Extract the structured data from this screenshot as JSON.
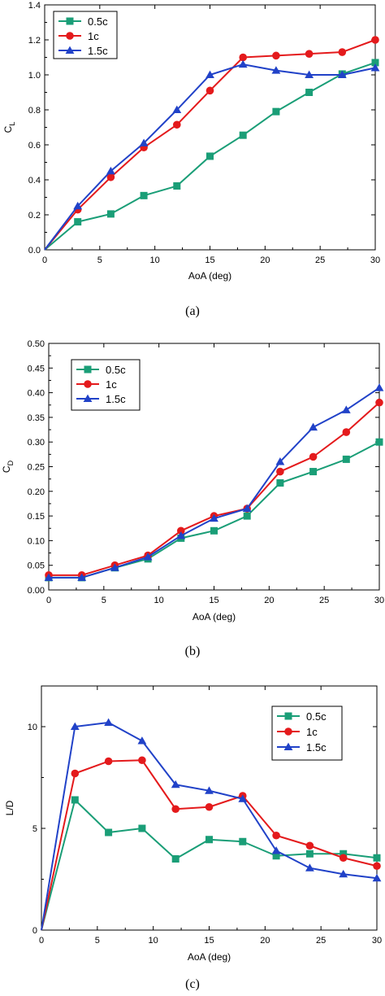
{
  "colors": {
    "s05": "#1a9e77",
    "s1": "#e41a1c",
    "s15": "#2142c8"
  },
  "chart_data": [
    {
      "id": "a",
      "type": "line",
      "caption": "(a)",
      "xlabel": "AoA (deg)",
      "ylabel": "C",
      "ylabel_sub": "L",
      "xlim": [
        0,
        30
      ],
      "ylim": [
        0,
        1.4
      ],
      "xticks": [
        0,
        5,
        10,
        15,
        20,
        25,
        30
      ],
      "xtick_labels": [
        "0",
        "5",
        "10",
        "15",
        "20",
        "25",
        "30"
      ],
      "yticks": [
        0,
        0.2,
        0.4,
        0.6,
        0.8,
        1.0,
        1.2,
        1.4
      ],
      "ytick_labels": [
        "0.0",
        "0.2",
        "0.4",
        "0.6",
        "0.8",
        "1.0",
        "1.2",
        "1.4"
      ],
      "legend_position": "top-left",
      "x": [
        0,
        3,
        6,
        9,
        12,
        15,
        18,
        21,
        24,
        27,
        30
      ],
      "series": [
        {
          "name": "0.5c",
          "color_key": "s05",
          "marker": "square",
          "values": [
            0.0,
            0.16,
            0.205,
            0.31,
            0.365,
            0.535,
            0.655,
            0.79,
            0.9,
            1.005,
            1.07
          ]
        },
        {
          "name": "1c",
          "color_key": "s1",
          "marker": "circle",
          "values": [
            0.0,
            0.23,
            0.415,
            0.585,
            0.715,
            0.91,
            1.1,
            1.11,
            1.12,
            1.13,
            1.2
          ]
        },
        {
          "name": "1.5c",
          "color_key": "s15",
          "marker": "triangle",
          "values": [
            0.0,
            0.25,
            0.45,
            0.61,
            0.8,
            1.0,
            1.06,
            1.025,
            1.0,
            1.0,
            1.04
          ]
        }
      ]
    },
    {
      "id": "b",
      "type": "line",
      "caption": "(b)",
      "xlabel": "AoA (deg)",
      "ylabel": "C",
      "ylabel_sub": "D",
      "xlim": [
        0,
        30
      ],
      "ylim": [
        0,
        0.5
      ],
      "xticks": [
        0,
        5,
        10,
        15,
        20,
        25,
        30
      ],
      "xtick_labels": [
        "0",
        "5",
        "10",
        "15",
        "20",
        "25",
        "30"
      ],
      "yticks": [
        0,
        0.05,
        0.1,
        0.15,
        0.2,
        0.25,
        0.3,
        0.35,
        0.4,
        0.45,
        0.5
      ],
      "ytick_labels": [
        "0.00",
        "0.05",
        "0.10",
        "0.15",
        "0.20",
        "0.25",
        "0.30",
        "0.35",
        "0.40",
        "0.45",
        "0.50"
      ],
      "legend_position": "top-left",
      "x": [
        0,
        3,
        6,
        9,
        12,
        15,
        18,
        21,
        24,
        27,
        30
      ],
      "series": [
        {
          "name": "0.5c",
          "color_key": "s05",
          "marker": "square",
          "values": [
            0.025,
            0.025,
            0.045,
            0.063,
            0.105,
            0.12,
            0.15,
            0.217,
            0.24,
            0.265,
            0.3
          ]
        },
        {
          "name": "1c",
          "color_key": "s1",
          "marker": "circle",
          "values": [
            0.03,
            0.03,
            0.05,
            0.07,
            0.12,
            0.15,
            0.165,
            0.24,
            0.27,
            0.32,
            0.38
          ]
        },
        {
          "name": "1.5c",
          "color_key": "s15",
          "marker": "triangle",
          "values": [
            0.025,
            0.025,
            0.045,
            0.067,
            0.11,
            0.145,
            0.165,
            0.26,
            0.33,
            0.365,
            0.41
          ]
        }
      ]
    },
    {
      "id": "c",
      "type": "line",
      "caption": "(c)",
      "xlabel": "AoA (deg)",
      "ylabel": "L/D",
      "ylabel_sub": "",
      "xlim": [
        0,
        30
      ],
      "ylim": [
        0,
        12
      ],
      "xticks": [
        0,
        5,
        10,
        15,
        20,
        25,
        30
      ],
      "xtick_labels": [
        "0",
        "5",
        "10",
        "15",
        "20",
        "25",
        "30"
      ],
      "yticks": [
        0,
        5,
        10
      ],
      "ytick_labels": [
        "0",
        "5",
        "10"
      ],
      "legend_position": "top-right",
      "x": [
        0,
        3,
        6,
        9,
        12,
        15,
        18,
        21,
        24,
        27,
        30
      ],
      "series": [
        {
          "name": "0.5c",
          "color_key": "s05",
          "marker": "square",
          "values": [
            0.0,
            6.4,
            4.8,
            5.0,
            3.5,
            4.45,
            4.35,
            3.65,
            3.75,
            3.75,
            3.55
          ]
        },
        {
          "name": "1c",
          "color_key": "s1",
          "marker": "circle",
          "values": [
            0.0,
            7.7,
            8.3,
            8.35,
            5.95,
            6.05,
            6.6,
            4.65,
            4.15,
            3.55,
            3.15
          ]
        },
        {
          "name": "1.5c",
          "color_key": "s15",
          "marker": "triangle",
          "values": [
            0.0,
            10.0,
            10.2,
            9.3,
            7.15,
            6.85,
            6.45,
            3.9,
            3.05,
            2.75,
            2.55
          ]
        }
      ]
    }
  ]
}
